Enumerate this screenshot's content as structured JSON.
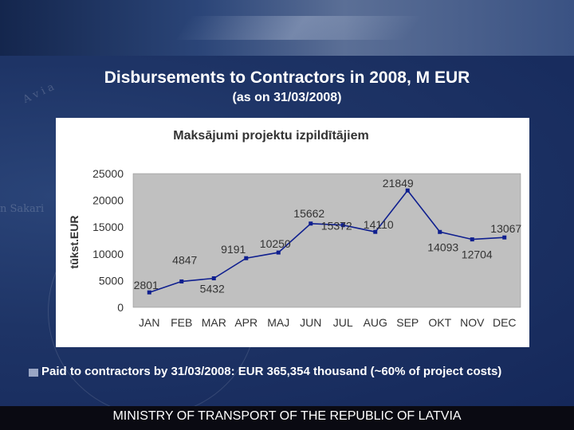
{
  "slide": {
    "title": "Disbursements to Contractors in 2008, M EUR",
    "subtitle": "(as on 31/03/2008)",
    "caption": "Paid to contractors by 31/03/2008: EUR 365,354 thousand (~60% of project costs)",
    "footer": "MINISTRY OF TRANSPORT OF THE REPUBLIC OF LATVIA"
  },
  "colors": {
    "plot_bg": "#c0c0c0",
    "line": "#0f1f8f",
    "text": "#333333"
  },
  "chart_data": {
    "type": "line",
    "title": "Maksājumi projektu izpildītājiem",
    "ylabel": "tūkst.EUR",
    "xlabel": "",
    "ylim": [
      0,
      25000
    ],
    "yticks": [
      0,
      5000,
      10000,
      15000,
      20000,
      25000
    ],
    "grid": false,
    "categories": [
      "JAN",
      "FEB",
      "MAR",
      "APR",
      "MAJ",
      "JUN",
      "JUL",
      "AUG",
      "SEP",
      "OKT",
      "NOV",
      "DEC"
    ],
    "series": [
      {
        "name": "Maksājumi",
        "values": [
          2801,
          4847,
          5432,
          9191,
          10250,
          15662,
          15372,
          14110,
          21849,
          14093,
          12704,
          13067
        ]
      }
    ],
    "data_labels": [
      "2801",
      "4847",
      "5432",
      "9191",
      "10250",
      "15662",
      "15372",
      "14110",
      "21849",
      "14093",
      "12704",
      "13067"
    ]
  }
}
